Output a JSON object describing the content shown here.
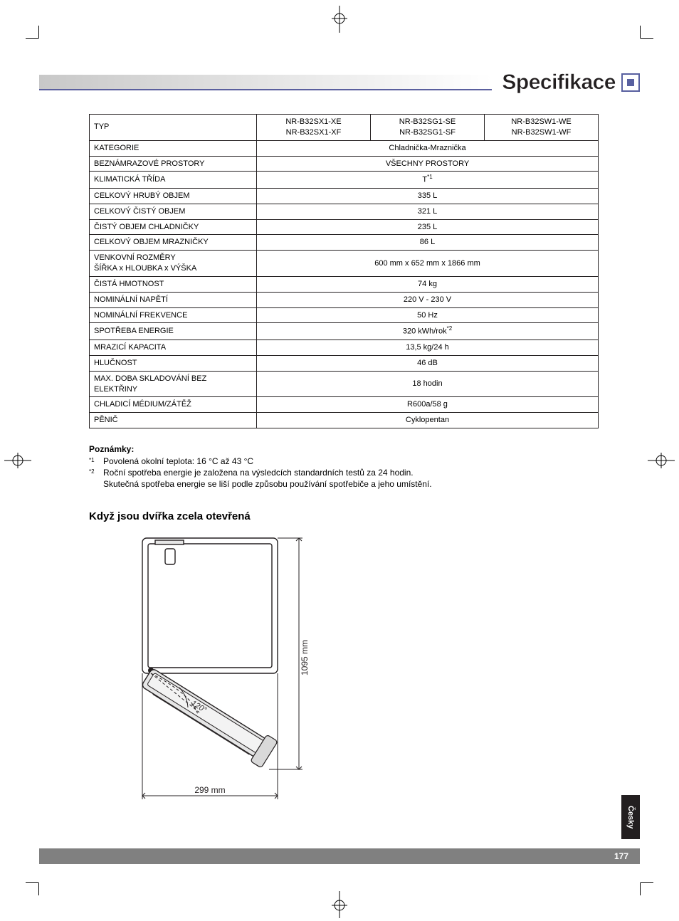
{
  "header": {
    "title": "Specifikace"
  },
  "table": {
    "type_label": "TYP",
    "models": [
      {
        "line1": "NR-B32SX1-XE",
        "line2": "NR-B32SX1-XF"
      },
      {
        "line1": "NR-B32SG1-SE",
        "line2": "NR-B32SG1-SF"
      },
      {
        "line1": "NR-B32SW1-WE",
        "line2": "NR-B32SW1-WF"
      }
    ],
    "rows": [
      {
        "label": "KATEGORIE",
        "value": "Chladnička-Mraznička"
      },
      {
        "label": "BEZNÁMRAZOVÉ PROSTORY",
        "value": "VŠECHNY PROSTORY"
      },
      {
        "label": "KLIMATICKÁ TŘÍDA",
        "value": "T",
        "sup": "*1"
      },
      {
        "label": "CELKOVÝ HRUBÝ OBJEM",
        "value": "335 L"
      },
      {
        "label": "CELKOVÝ ČISTÝ OBJEM",
        "value": "321 L"
      },
      {
        "label": "ČISTÝ OBJEM CHLADNIČKY",
        "value": "235 L"
      },
      {
        "label": "CELKOVÝ OBJEM MRAZNIČKY",
        "value": "86 L"
      },
      {
        "label": "VENKOVNÍ ROZMĚRY\nŠÍŘKA x HLOUBKA x VÝŠKA",
        "value": "600 mm x 652 mm x 1866 mm"
      },
      {
        "label": "ČISTÁ HMOTNOST",
        "value": "74 kg"
      },
      {
        "label": "NOMINÁLNÍ NAPĚTÍ",
        "value": "220 V - 230 V"
      },
      {
        "label": "NOMINÁLNÍ FREKVENCE",
        "value": "50 Hz"
      },
      {
        "label": "SPOTŘEBA ENERGIE",
        "value": "320 kWh/rok",
        "sup": "*2"
      },
      {
        "label": "MRAZICÍ KAPACITA",
        "value": "13,5 kg/24 h"
      },
      {
        "label": "HLUČNOST",
        "value": "46 dB"
      },
      {
        "label": "MAX. DOBA SKLADOVÁNÍ BEZ ELEKTŘINY",
        "value": "18 hodin"
      },
      {
        "label": "CHLADICÍ MÉDIUM/ZÁTĚŽ",
        "value": "R600a/58 g"
      },
      {
        "label": "PĚNIČ",
        "value": "Cyklopentan"
      }
    ]
  },
  "notes": {
    "title": "Poznámky:",
    "items": [
      {
        "marker": "*1",
        "text": "Povolená okolní teplota: 16 °C až 43 °C"
      },
      {
        "marker": "*2",
        "text": "Roční spotřeba energie je založena na výsledcích standardních testů za 24 hodin.\nSkutečná spotřeba energie se liší podle způsobu používání spotřebiče a jeho umístění."
      }
    ]
  },
  "diagram": {
    "heading": "Když jsou dvířka zcela otevřená",
    "height_label": "1095 mm",
    "width_label": "299 mm",
    "angle_label": "120°",
    "colors": {
      "stroke": "#231f20",
      "door_fill": "#e6e6e6",
      "body_fill": "#ffffff"
    }
  },
  "footer": {
    "language_tab": "Česky",
    "page_number": "177"
  }
}
